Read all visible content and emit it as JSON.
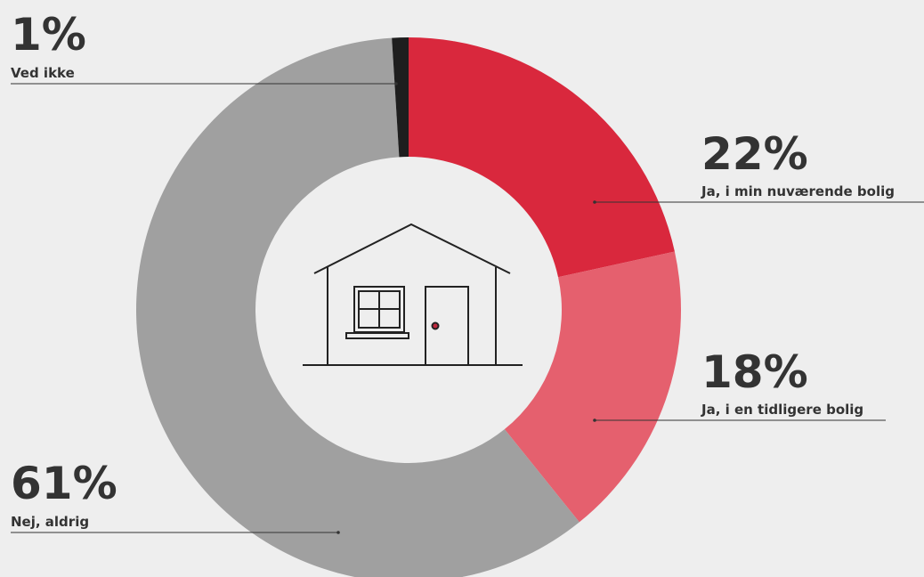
{
  "chart_data": {
    "type": "donut",
    "categories": [
      "Ja, i min nuværende bolig",
      "Ja, i en tidligere bolig",
      "Nej, aldrig",
      "Ved ikke"
    ],
    "values": [
      22,
      18,
      61,
      1
    ],
    "value_labels": [
      "22%",
      "18%",
      "61%",
      "1%"
    ],
    "colors": [
      "#d9283d",
      "#e5606e",
      "#a0a0a0",
      "#1e1e1e"
    ]
  }
}
